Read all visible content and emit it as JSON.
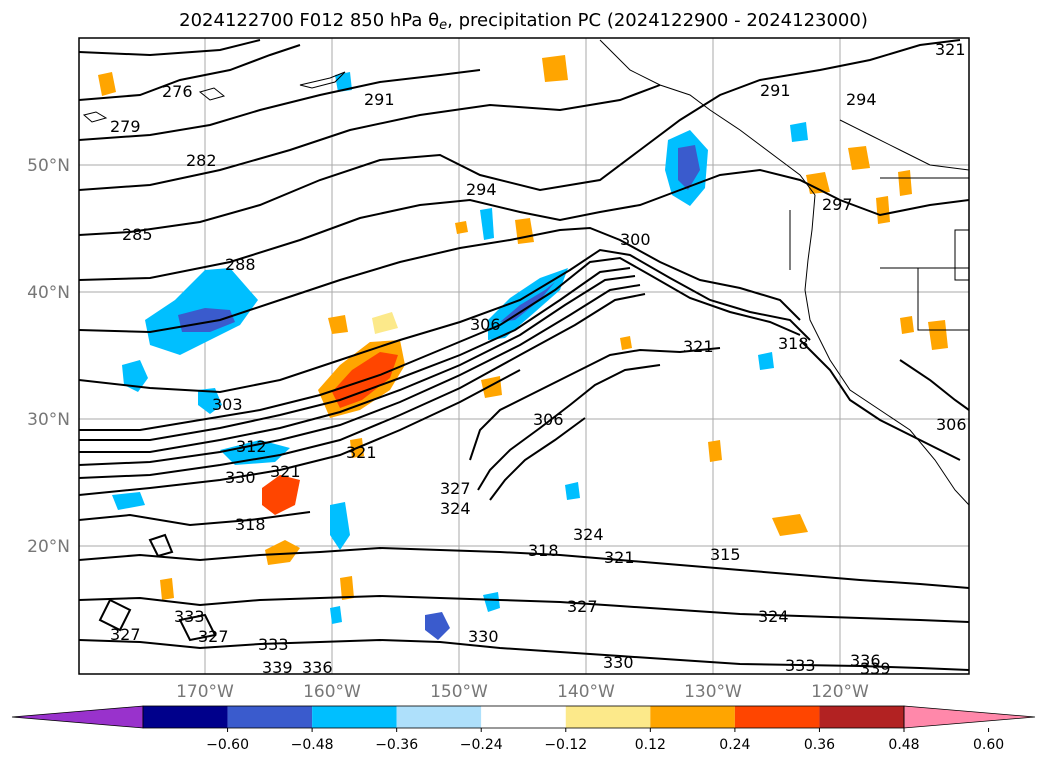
{
  "title": {
    "prefix": "2024122700 F012 850 hPa ",
    "theta": "θ",
    "theta_sub": "e",
    "suffix": ", precipitation PC (2024122900 - 2024123000)"
  },
  "axes": {
    "lat_labels": [
      "50°N",
      "40°N",
      "30°N",
      "20°N"
    ],
    "lon_labels": [
      "170°W",
      "160°W",
      "150°W",
      "140°W",
      "130°W",
      "120°W"
    ]
  },
  "contour_labels": [
    "276",
    "279",
    "282",
    "285",
    "288",
    "291",
    "294",
    "291",
    "294",
    "297",
    "303",
    "306",
    "300",
    "312",
    "321",
    "318",
    "330",
    "321",
    "321",
    "306",
    "327",
    "324",
    "324",
    "318",
    "321",
    "315",
    "333",
    "327",
    "330",
    "324",
    "327",
    "330",
    "333",
    "336",
    "339",
    "336",
    "339",
    "318",
    "306",
    "321",
    "327",
    "333"
  ],
  "colorbar": {
    "colors": [
      "#9932cc",
      "#00008b",
      "#3a5bcd",
      "#00bfff",
      "#aee0fb",
      "#ffffff",
      "#fce98a",
      "#ffa500",
      "#ff4500",
      "#b22222",
      "#ff88aa"
    ],
    "ticks": [
      "−0.60",
      "−0.48",
      "−0.36",
      "−0.24",
      "−0.12",
      "0.12",
      "0.24",
      "0.36",
      "0.48",
      "0.60"
    ],
    "extend": "both"
  },
  "colors": {
    "contour": "#000000",
    "grid": "#aaaaaa",
    "coast": "#000000",
    "axis_label": "#777777"
  }
}
